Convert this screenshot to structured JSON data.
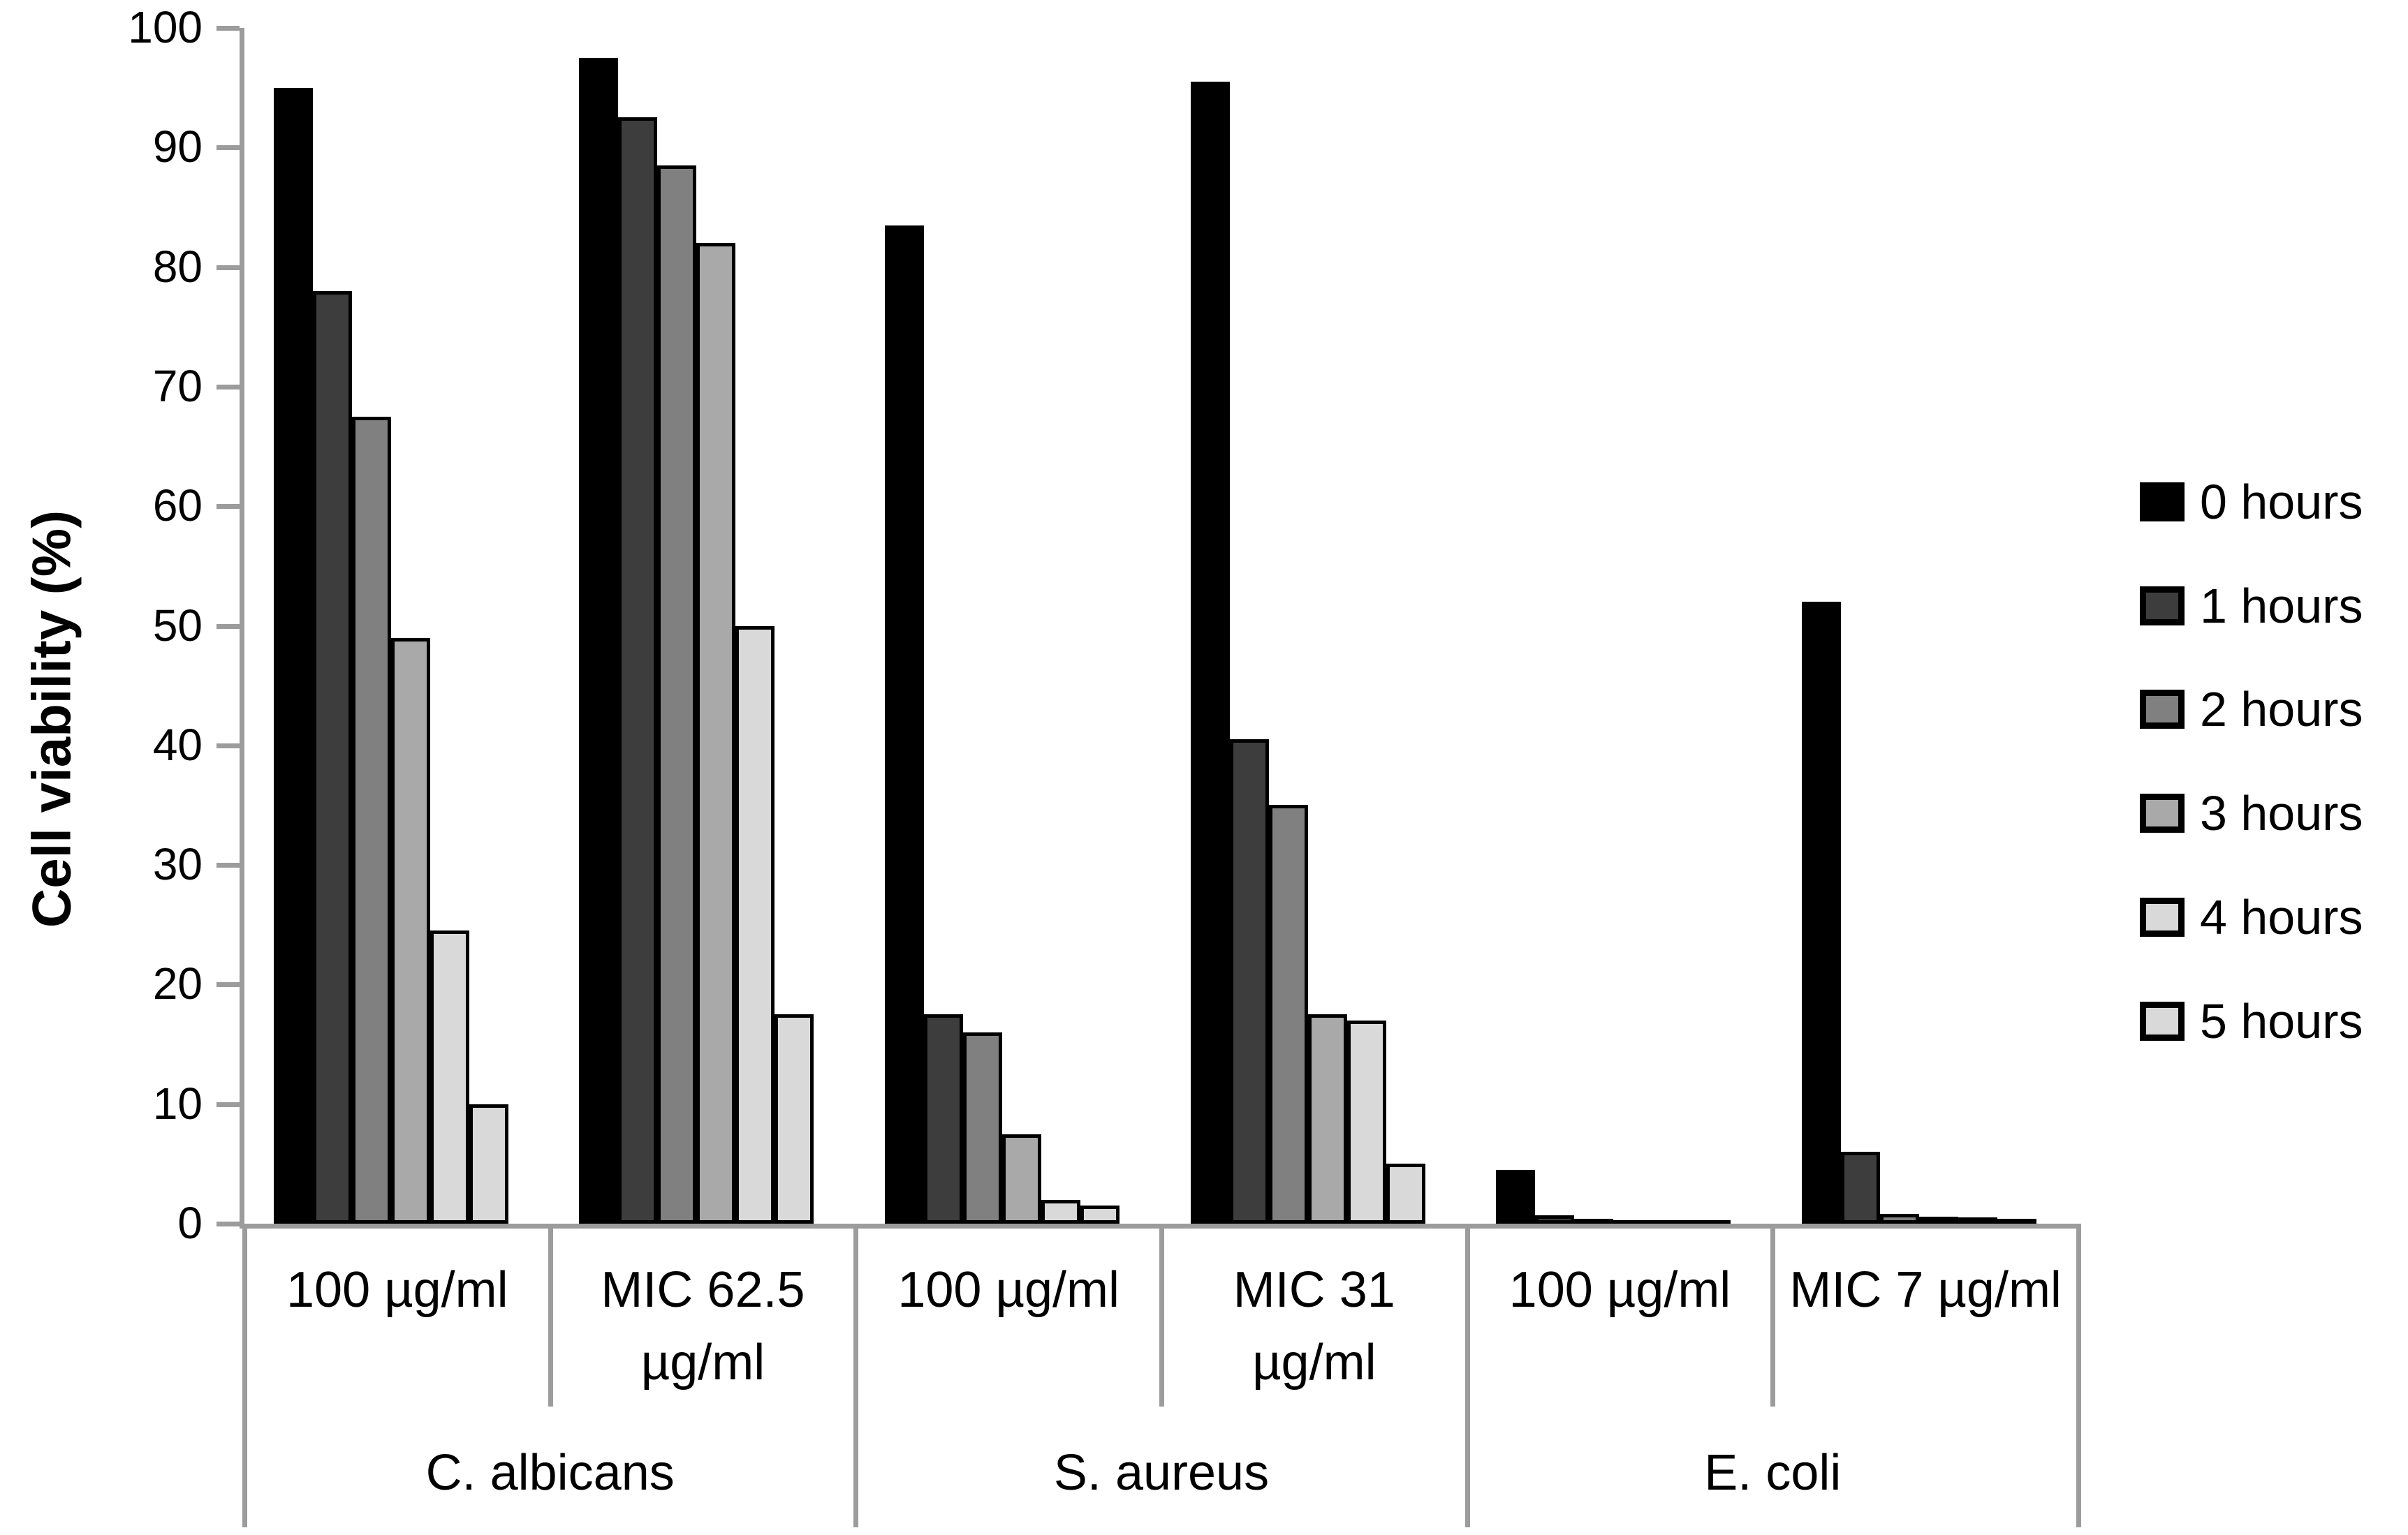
{
  "chart_data": {
    "type": "bar",
    "title": "",
    "ylabel": "Cell viability (%)",
    "xlabel": "",
    "ylim": [
      0,
      100
    ],
    "yticks": [
      0,
      10,
      20,
      30,
      40,
      50,
      60,
      70,
      80,
      90,
      100
    ],
    "grid": false,
    "legend_position": "right",
    "legend_labels": [
      "0 hours",
      "1 hours",
      "2 hours",
      "3 hours",
      "4 hours",
      "5 hours"
    ],
    "series": [
      {
        "name": "0 hours",
        "color": "#000000",
        "values": [
          95,
          97.5,
          83.5,
          95.5,
          4.5,
          52
        ]
      },
      {
        "name": "1 hours",
        "color": "#3d3d3d",
        "values": [
          78,
          92.5,
          17.5,
          40.5,
          0.7,
          6
        ]
      },
      {
        "name": "2 hours",
        "color": "#808080",
        "values": [
          67.5,
          88.5,
          16,
          35,
          0.4,
          0.8
        ]
      },
      {
        "name": "3 hours",
        "color": "#a9a9a9",
        "values": [
          49,
          82,
          7.5,
          17.5,
          0.25,
          0.6
        ]
      },
      {
        "name": "4 hours",
        "color": "#d9d9d9",
        "values": [
          24.5,
          50,
          2,
          17,
          0.2,
          0.5
        ]
      },
      {
        "name": "5 hours",
        "color": "#d9d9d9",
        "values": [
          10,
          17.5,
          1.5,
          5,
          0.15,
          0.4
        ]
      }
    ],
    "categories": [
      {
        "dose": "100 µg/ml",
        "species": "C. albicans"
      },
      {
        "dose": "MIC 62.5\nµg/ml",
        "species": "C. albicans"
      },
      {
        "dose": "100 µg/ml",
        "species": "S. aureus"
      },
      {
        "dose": "MIC 31\nµg/ml",
        "species": "S. aureus"
      },
      {
        "dose": "100 µg/ml",
        "species": "E. coli"
      },
      {
        "dose": "MIC 7 µg/ml",
        "species": "E. coli"
      }
    ],
    "species_groups": [
      {
        "label": "C. albicans",
        "start": 0,
        "count": 2
      },
      {
        "label": "S. aureus",
        "start": 2,
        "count": 2
      },
      {
        "label": "E. coli",
        "start": 4,
        "count": 2
      }
    ],
    "axis_color": "#9c9c9c",
    "text_color": "#000000"
  }
}
